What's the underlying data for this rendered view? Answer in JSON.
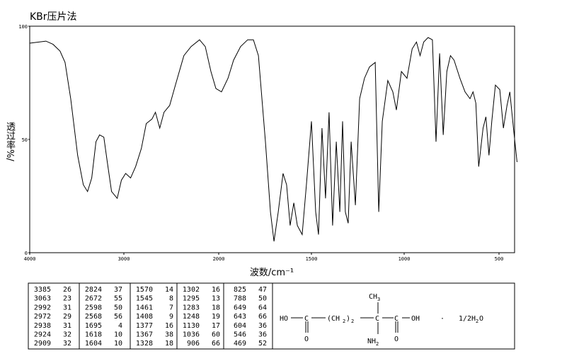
{
  "chart_data": {
    "type": "line",
    "title": "KBr压片法",
    "xlabel": "波数/cm⁻¹",
    "ylabel": "透过率%/",
    "x": [
      4000,
      3828,
      3753,
      3678,
      3625,
      3565,
      3491,
      3431,
      3386,
      3341,
      3296,
      3258,
      3213,
      3176,
      3131,
      3071,
      3026,
      2981,
      2929,
      2876,
      2816,
      2764,
      2704,
      2667,
      2622,
      2577,
      2517,
      2457,
      2367,
      2292,
      2202,
      2142,
      2082,
      2030,
      1985,
      1950,
      1920,
      1882,
      1844,
      1813,
      1786,
      1748,
      1721,
      1702,
      1679,
      1653,
      1634,
      1615,
      1595,
      1576,
      1550,
      1527,
      1500,
      1477,
      1462,
      1443,
      1424,
      1405,
      1386,
      1366,
      1347,
      1332,
      1317,
      1302,
      1286,
      1263,
      1240,
      1214,
      1187,
      1156,
      1137,
      1118,
      1088,
      1061,
      1042,
      1015,
      985,
      958,
      935,
      916,
      897,
      874,
      851,
      832,
      813,
      794,
      775,
      756,
      737,
      706,
      679,
      653,
      637,
      622,
      607,
      584,
      569,
      553,
      538,
      519,
      496,
      477,
      458,
      443,
      424,
      405
    ],
    "series": [
      {
        "name": "spectrum",
        "color": "#000000",
        "values": [
          92.5,
          93.4,
          92,
          89,
          84,
          68,
          43,
          30,
          27,
          33,
          49,
          52,
          51,
          40,
          27,
          24,
          32,
          35,
          33,
          38,
          46,
          57,
          59,
          62,
          55,
          62,
          65,
          74,
          87,
          91,
          94,
          91,
          80,
          72.5,
          71,
          77,
          85,
          91,
          94,
          94,
          87,
          49,
          18,
          5,
          18,
          35,
          30,
          12,
          22,
          12,
          8,
          30,
          58,
          18,
          8,
          55,
          24,
          62,
          12,
          49,
          18,
          58,
          18,
          13,
          49,
          21,
          68,
          77,
          82,
          84,
          18,
          58,
          76,
          71,
          63,
          80,
          77,
          90,
          93,
          87,
          93,
          95,
          94,
          49,
          88,
          52,
          80,
          87,
          85,
          77,
          71,
          68,
          71,
          66,
          38,
          55,
          60,
          43,
          58,
          74,
          72,
          55,
          65,
          71,
          55,
          40
        ]
      }
    ],
    "xlim": [
      4000,
      400
    ],
    "xticks": [
      4000,
      3000,
      2000,
      1500,
      1000,
      500
    ],
    "ylim": [
      0,
      100
    ],
    "yticks": [
      0,
      50,
      100
    ]
  },
  "peak_table": [
    [
      [
        3385,
        26
      ],
      [
        3063,
        23
      ],
      [
        2992,
        31
      ],
      [
        2972,
        29
      ],
      [
        2938,
        31
      ],
      [
        2924,
        32
      ],
      [
        2909,
        32
      ]
    ],
    [
      [
        2824,
        37
      ],
      [
        2672,
        55
      ],
      [
        2598,
        50
      ],
      [
        2568,
        56
      ],
      [
        1695,
        4
      ],
      [
        1618,
        10
      ],
      [
        1604,
        10
      ]
    ],
    [
      [
        1570,
        14
      ],
      [
        1545,
        8
      ],
      [
        1461,
        7
      ],
      [
        1408,
        9
      ],
      [
        1377,
        16
      ],
      [
        1367,
        38
      ],
      [
        1328,
        18
      ]
    ],
    [
      [
        1302,
        16
      ],
      [
        1295,
        13
      ],
      [
        1283,
        18
      ],
      [
        1248,
        19
      ],
      [
        1130,
        17
      ],
      [
        1036,
        60
      ],
      [
        906,
        66
      ]
    ],
    [
      [
        825,
        47
      ],
      [
        788,
        50
      ],
      [
        649,
        64
      ],
      [
        643,
        66
      ],
      [
        604,
        36
      ],
      [
        546,
        36
      ],
      [
        469,
        52
      ]
    ]
  ],
  "structure": {
    "ho": "HO",
    "c1": "C",
    "o1": "O",
    "ch2": "(CH",
    "sub1": "2",
    "paren": ")",
    "sub2": "2",
    "c2": "C",
    "ch3": "CH",
    "sub3": "3",
    "nh2": "NH",
    "sub4": "2",
    "c3": "C",
    "o2": "O",
    "oh": "OH",
    "dot": "·",
    "water": "1/2H",
    "sub5": "2",
    "water_o": "O"
  }
}
